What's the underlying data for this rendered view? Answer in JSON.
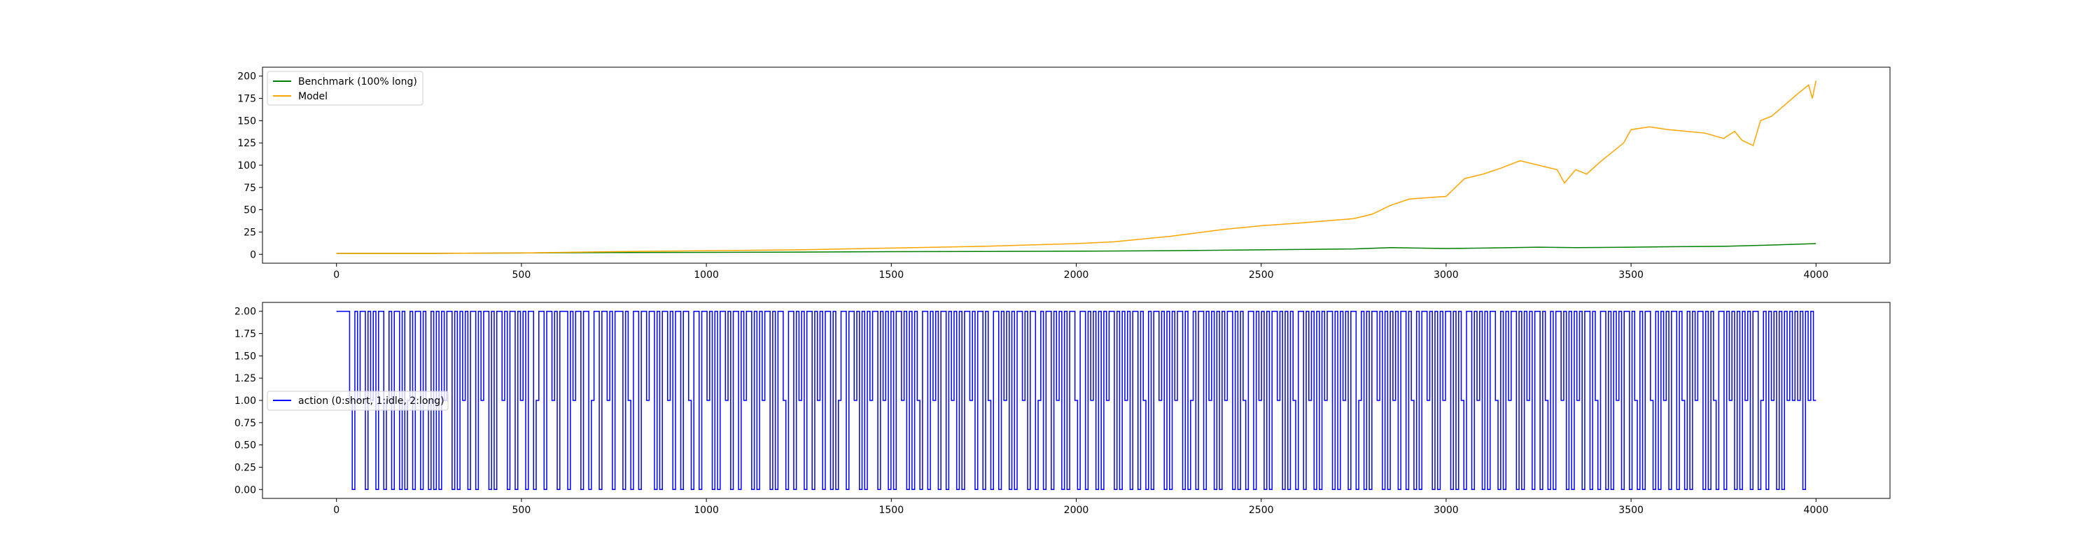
{
  "chart_data": [
    {
      "type": "line",
      "title": "",
      "xlabel": "",
      "ylabel": "",
      "xlim": [
        -200,
        4200
      ],
      "ylim": [
        -10,
        210
      ],
      "xticks": [
        0,
        500,
        1000,
        1500,
        2000,
        2500,
        3000,
        3500,
        4000
      ],
      "xtick_labels": [
        "0",
        "500",
        "1000",
        "1500",
        "2000",
        "2500",
        "3000",
        "3500",
        "4000"
      ],
      "yticks": [
        0,
        25,
        50,
        75,
        100,
        125,
        150,
        175,
        200
      ],
      "ytick_labels": [
        "0",
        "25",
        "50",
        "75",
        "100",
        "125",
        "150",
        "175",
        "200"
      ],
      "grid": false,
      "legend_position": "top-left",
      "series": [
        {
          "name": "Benchmark (100% long)",
          "color": "#008000",
          "x": [
            0,
            250,
            500,
            750,
            1000,
            1250,
            1500,
            1750,
            2000,
            2250,
            2500,
            2750,
            2850,
            3000,
            3100,
            3250,
            3350,
            3500,
            3600,
            3750,
            3850,
            4000
          ],
          "y": [
            1,
            1,
            1.5,
            2,
            2.2,
            2.5,
            3,
            3.2,
            3.5,
            4,
            5,
            6,
            7.5,
            6.5,
            7,
            8,
            7.5,
            8,
            8.5,
            9,
            10,
            12
          ]
        },
        {
          "name": "Model",
          "color": "#ffa500",
          "x": [
            0,
            250,
            500,
            750,
            1000,
            1250,
            1500,
            1750,
            2000,
            2100,
            2250,
            2400,
            2500,
            2600,
            2750,
            2800,
            2850,
            2900,
            3000,
            3050,
            3100,
            3150,
            3200,
            3250,
            3300,
            3320,
            3350,
            3380,
            3420,
            3450,
            3480,
            3500,
            3550,
            3600,
            3650,
            3700,
            3750,
            3780,
            3800,
            3830,
            3850,
            3880,
            3900,
            3950,
            3980,
            3990,
            4000
          ],
          "y": [
            1,
            1,
            1.5,
            3,
            4,
            5,
            7,
            9,
            12,
            14,
            20,
            28,
            32,
            35,
            40,
            45,
            55,
            62,
            65,
            85,
            90,
            97,
            105,
            100,
            95,
            80,
            95,
            90,
            105,
            115,
            125,
            140,
            143,
            140,
            138,
            136,
            130,
            138,
            128,
            122,
            150,
            155,
            162,
            180,
            190,
            175,
            195
          ]
        }
      ]
    },
    {
      "type": "line",
      "title": "",
      "xlabel": "",
      "ylabel": "",
      "xlim": [
        -200,
        4200
      ],
      "ylim": [
        -0.1,
        2.1
      ],
      "xticks": [
        0,
        500,
        1000,
        1500,
        2000,
        2500,
        3000,
        3500,
        4000
      ],
      "xtick_labels": [
        "0",
        "500",
        "1000",
        "1500",
        "2000",
        "2500",
        "3000",
        "3500",
        "4000"
      ],
      "yticks": [
        0,
        0.25,
        0.5,
        0.75,
        1.0,
        1.25,
        1.5,
        1.75,
        2.0
      ],
      "ytick_labels": [
        "0.00",
        "0.25",
        "0.50",
        "0.75",
        "1.00",
        "1.25",
        "1.50",
        "1.75",
        "2.00"
      ],
      "grid": false,
      "legend_position": "center-left",
      "series": [
        {
          "name": "action (0:short, 1:idle, 2:long)",
          "color": "#0000ff",
          "x_start": 0,
          "x_end": 4000,
          "values": [
            2,
            2,
            2,
            2,
            2,
            1,
            0,
            2,
            1,
            2,
            2,
            0,
            2,
            1,
            2,
            0,
            2,
            2,
            0,
            1,
            2,
            0,
            2,
            2,
            0,
            2,
            0,
            1,
            2,
            0,
            2,
            2,
            0,
            2,
            1,
            0,
            2,
            0,
            2,
            0,
            2,
            1,
            2,
            2,
            0,
            2,
            0,
            2,
            1,
            2,
            0,
            2,
            2,
            0,
            2,
            1,
            2,
            2,
            0,
            2,
            0,
            2,
            2,
            1,
            2,
            0,
            2,
            2,
            0,
            2,
            1,
            2,
            0,
            2,
            2,
            0,
            1,
            2,
            2,
            0,
            2,
            2,
            1,
            2,
            0,
            2,
            2,
            2,
            0,
            2,
            1,
            2,
            2,
            0,
            2,
            2,
            0,
            1,
            2,
            2,
            0,
            2,
            2,
            1,
            2,
            0,
            2,
            2,
            2,
            0,
            2,
            1,
            0,
            2,
            2,
            0,
            2,
            2,
            1,
            2,
            2,
            0,
            2,
            0,
            2,
            2,
            1,
            2,
            0,
            2,
            2,
            0,
            2,
            2,
            1,
            0,
            2,
            2,
            0,
            2,
            2,
            1,
            2,
            0,
            2,
            0,
            2,
            2,
            1,
            2,
            0,
            2,
            2,
            0,
            2,
            1,
            2,
            2,
            0,
            2,
            0,
            2,
            1,
            2,
            2,
            0,
            2,
            0,
            2,
            2,
            1,
            0,
            2,
            2,
            0,
            2,
            1,
            2,
            0,
            2,
            2,
            0,
            2,
            1,
            2,
            0,
            2,
            2,
            0,
            2,
            0,
            1,
            2,
            2,
            0,
            2,
            2,
            1,
            2,
            0,
            2,
            0,
            2,
            1,
            2,
            2,
            0,
            2,
            1,
            2,
            0,
            2,
            0,
            2,
            2,
            1,
            2,
            0,
            2,
            0,
            2,
            1,
            0,
            2,
            2,
            0,
            2,
            1,
            2,
            0,
            2,
            2,
            0,
            2,
            1,
            2,
            0,
            2,
            0,
            2,
            2,
            1,
            2,
            0,
            2,
            2,
            0,
            2,
            1,
            0,
            2,
            2,
            0,
            2,
            1,
            2,
            0,
            2,
            0,
            2,
            2,
            1,
            2,
            0,
            2,
            2,
            0,
            1,
            2,
            0,
            2,
            2,
            0,
            2,
            1,
            2,
            0,
            2,
            0,
            2,
            2,
            1,
            0,
            2,
            2,
            0,
            2,
            1,
            2,
            0,
            2,
            0,
            2,
            1,
            2,
            2,
            0,
            2,
            0,
            2,
            1,
            2,
            0,
            2,
            2,
            0,
            2,
            1,
            0,
            2,
            0,
            2,
            2,
            1,
            2,
            0,
            2,
            0,
            2,
            1,
            2,
            2,
            0,
            2,
            0,
            1,
            2,
            0,
            2,
            2,
            0,
            2,
            1,
            2,
            0,
            2,
            0,
            2,
            1,
            2,
            2,
            0,
            2,
            0,
            2,
            1,
            0,
            2,
            2,
            0,
            2,
            1,
            2,
            0,
            2,
            0,
            2,
            2,
            1,
            2,
            0,
            2,
            0,
            2,
            1,
            0,
            2,
            2,
            0,
            2,
            1,
            2,
            0,
            2,
            0,
            2,
            1,
            2,
            2,
            0,
            2,
            0,
            2,
            1,
            2,
            0,
            2,
            2,
            0,
            1,
            2,
            0,
            2,
            0,
            2,
            2,
            1,
            2,
            0,
            2,
            0,
            2,
            1,
            2,
            0,
            2,
            2,
            0,
            2,
            1,
            0,
            2,
            0,
            2,
            2,
            1,
            2,
            0,
            2,
            0,
            2,
            1,
            2,
            2,
            0,
            2,
            0,
            2,
            1,
            0,
            2,
            2,
            0,
            2,
            1,
            2,
            0,
            2,
            0,
            2,
            2,
            1,
            0,
            2,
            0,
            2,
            1,
            2,
            2,
            0,
            2,
            0,
            2,
            1,
            2,
            0,
            2,
            2,
            0,
            2,
            1,
            0,
            2,
            0,
            2,
            2,
            1,
            2,
            0,
            2,
            0,
            2,
            1,
            2,
            0,
            2,
            2,
            0,
            2,
            1,
            0,
            2,
            2,
            0,
            2,
            0,
            2,
            1,
            2,
            0,
            2,
            2,
            0,
            2,
            1,
            0,
            2,
            0,
            2,
            2,
            1,
            0,
            2,
            0,
            2,
            1,
            2,
            0,
            2,
            2,
            0,
            2,
            1,
            0,
            2,
            0,
            2,
            1,
            2,
            2,
            0,
            2,
            0,
            2,
            1,
            0,
            2,
            2,
            0,
            2,
            1,
            2,
            0,
            2,
            0,
            2,
            1,
            2,
            0,
            2,
            2,
            0,
            1,
            2,
            0,
            2,
            1,
            2,
            0,
            2,
            0,
            2,
            1,
            2,
            1,
            2,
            1,
            2,
            0,
            2,
            1,
            2,
            1
          ]
        }
      ]
    }
  ]
}
